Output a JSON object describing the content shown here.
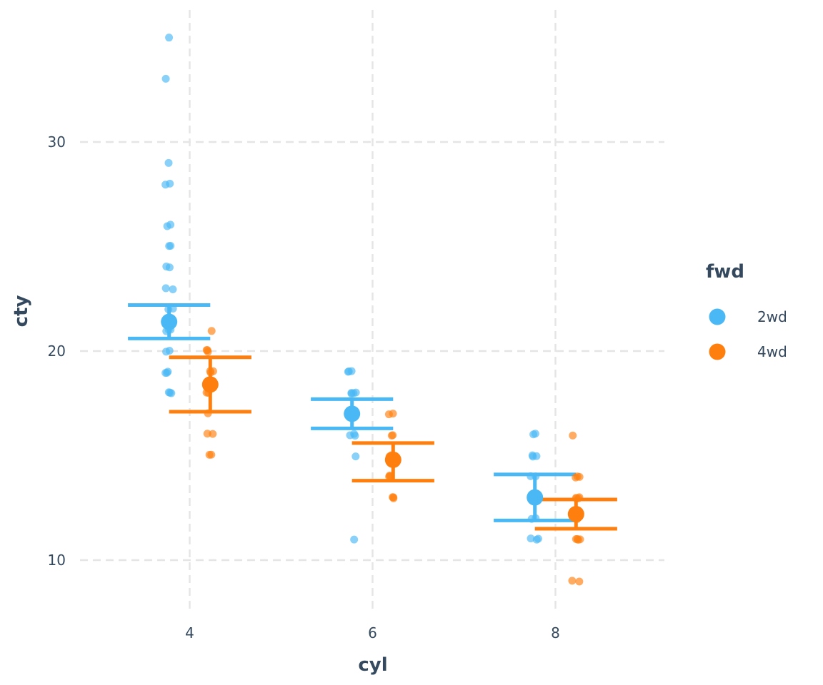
{
  "chart_data": {
    "type": "scatter",
    "title": "",
    "xlabel": "cyl",
    "ylabel": "cty",
    "x_ticks": [
      4,
      6,
      8
    ],
    "y_ticks": [
      10,
      20,
      30
    ],
    "xlim": [
      2.8,
      9.2
    ],
    "ylim": [
      7.5,
      36.5
    ],
    "grid": true,
    "legend": {
      "title": "fwd",
      "position": "right",
      "entries": [
        {
          "label": "2wd",
          "color": "#4ab8f5"
        },
        {
          "label": "4wd",
          "color": "#ff7f0e"
        }
      ]
    },
    "series": [
      {
        "name": "2wd",
        "color": "#4ab8f5",
        "groups": [
          {
            "cyl": 4,
            "mean": 21.4,
            "ci": [
              20.6,
              22.2
            ],
            "points": [
              35,
              33,
              29,
              28,
              28,
              26,
              26,
              25,
              25,
              24,
              24,
              23,
              23,
              22,
              22,
              21,
              21,
              21,
              20,
              20,
              19,
              19,
              19,
              18,
              18,
              18
            ]
          },
          {
            "cyl": 6,
            "mean": 17.0,
            "ci": [
              16.3,
              17.7
            ],
            "points": [
              19,
              19,
              19,
              18,
              18,
              18,
              18,
              17,
              17,
              16,
              16,
              16,
              15,
              11
            ]
          },
          {
            "cyl": 8,
            "mean": 13.0,
            "ci": [
              11.9,
              14.1
            ],
            "points": [
              16,
              16,
              15,
              15,
              15,
              14,
              14,
              13,
              13,
              12,
              12,
              11,
              11,
              11
            ]
          }
        ]
      },
      {
        "name": "4wd",
        "color": "#ff7f0e",
        "groups": [
          {
            "cyl": 4,
            "mean": 18.4,
            "ci": [
              17.1,
              19.7
            ],
            "points": [
              21,
              20,
              20,
              20,
              19,
              19,
              19,
              18,
              18,
              17,
              16,
              16,
              15,
              15
            ]
          },
          {
            "cyl": 6,
            "mean": 14.8,
            "ci": [
              13.8,
              15.6
            ],
            "points": [
              17,
              17,
              16,
              16,
              15,
              15,
              15,
              14,
              14,
              14,
              13,
              13,
              13
            ]
          },
          {
            "cyl": 8,
            "mean": 12.2,
            "ci": [
              11.5,
              12.9
            ],
            "points": [
              16,
              14,
              14,
              14,
              13,
              13,
              13,
              13,
              12,
              12,
              11,
              11,
              11,
              11,
              9,
              9
            ]
          }
        ]
      }
    ]
  }
}
